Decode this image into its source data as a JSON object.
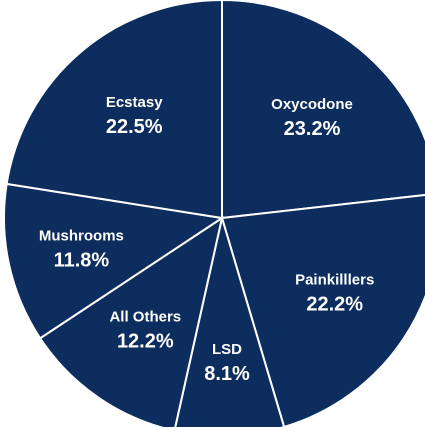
{
  "chart_data": {
    "type": "pie",
    "title": "",
    "slices": [
      {
        "label": "Oxycodone",
        "value": 23.2,
        "display": "23.2%"
      },
      {
        "label": "Painkilllers",
        "value": 22.2,
        "display": "22.2%"
      },
      {
        "label": "LSD",
        "value": 8.1,
        "display": "8.1%"
      },
      {
        "label": "All Others",
        "value": 12.2,
        "display": "12.2%"
      },
      {
        "label": "Mushrooms",
        "value": 11.8,
        "display": "11.8%"
      },
      {
        "label": "Ecstasy",
        "value": 22.5,
        "display": "22.5%"
      }
    ],
    "start": "12 o'clock",
    "direction": "clockwise",
    "legend": "none",
    "colors": {
      "fill": "#0c2d5e",
      "border": "#ffffff",
      "label": "#ffffff"
    }
  }
}
